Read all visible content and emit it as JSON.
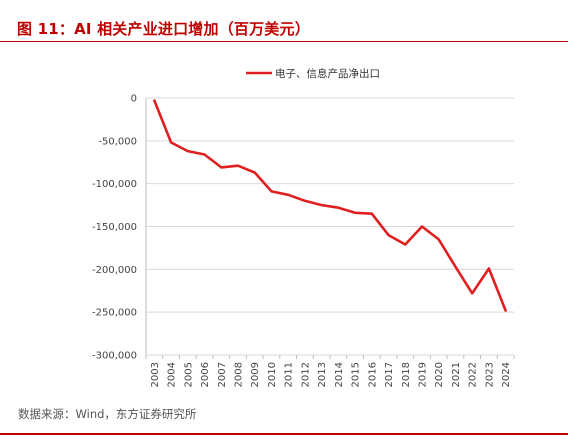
{
  "figure": {
    "title": "图 11：AI 相关产业进口增加（百万美元）",
    "source": "数据来源：Wind，东方证券研究所"
  },
  "colors": {
    "accent": "#c00000",
    "series": "#e02020",
    "grid": "#d9d9d9"
  },
  "chart_data": {
    "type": "line",
    "title": "",
    "xlabel": "",
    "ylabel": "",
    "x": [
      "2003",
      "2004",
      "2005",
      "2006",
      "2007",
      "2008",
      "2009",
      "2010",
      "2011",
      "2012",
      "2013",
      "2014",
      "2015",
      "2016",
      "2017",
      "2018",
      "2019",
      "2020",
      "2021",
      "2022",
      "2023",
      "2024"
    ],
    "series": [
      {
        "name": "电子、信息产品净出口",
        "values": [
          -3000,
          -52000,
          -62000,
          -66000,
          -81000,
          -79000,
          -87000,
          -109000,
          -113000,
          -120000,
          -125000,
          -128000,
          -134000,
          -135000,
          -160000,
          -171000,
          -150000,
          -165000,
          -197000,
          -228000,
          -199000,
          -248000
        ]
      }
    ],
    "ylim": [
      -300000,
      0
    ],
    "yticks": [
      0,
      -50000,
      -100000,
      -150000,
      -200000,
      -250000,
      -300000
    ],
    "ytick_labels": [
      "0",
      "-50,000",
      "-100,000",
      "-150,000",
      "-200,000",
      "-250,000",
      "-300,000"
    ],
    "grid": true,
    "legend_position": "top"
  }
}
